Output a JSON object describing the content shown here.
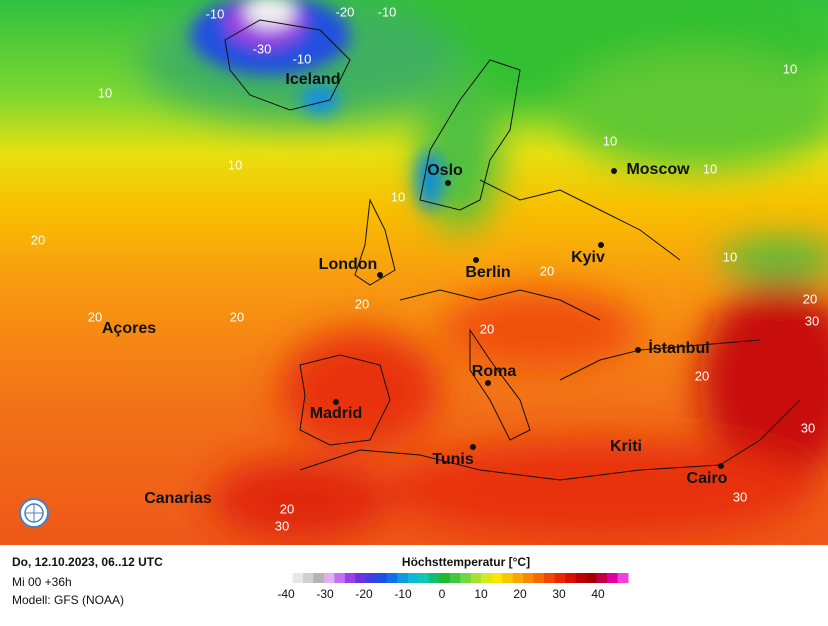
{
  "map": {
    "cities": [
      "Iceland",
      "Oslo",
      "Moscow",
      "London",
      "Berlin",
      "Kyiv",
      "Açores",
      "İstanbul",
      "Roma",
      "Madrid",
      "Tunis",
      "Kriti",
      "Cairo",
      "Canarias"
    ],
    "isoline_labels": [
      -10,
      -20,
      -10,
      -30,
      -10,
      10,
      10,
      10,
      10,
      10,
      10,
      20,
      20,
      20,
      20,
      20,
      20,
      20,
      30,
      30,
      30,
      20,
      30,
      10,
      20
    ]
  },
  "footer": {
    "date": "Do, 12.10.2023, 06..12 UTC",
    "run": "Mi 00 +36h",
    "model": "Modell: GFS (NOAA)"
  },
  "legend": {
    "title": "Höchsttemperatur [°C]",
    "ticks": [
      -40,
      -30,
      -20,
      -10,
      0,
      10,
      20,
      30,
      40
    ],
    "colors": [
      "#ffffff",
      "#e8e8e8",
      "#cfcfcf",
      "#b4b4b4",
      "#e0b0f0",
      "#c070f0",
      "#9a40e8",
      "#7030e0",
      "#4040e0",
      "#2050e8",
      "#1070e8",
      "#1098e0",
      "#10b8d8",
      "#10c8b0",
      "#10c070",
      "#20b830",
      "#40c840",
      "#70d840",
      "#a8e030",
      "#d8e820",
      "#f8e800",
      "#f8c800",
      "#f8a800",
      "#f88800",
      "#f86800",
      "#f04800",
      "#e82800",
      "#d81000",
      "#c00000",
      "#a00000",
      "#c00040",
      "#e000a0",
      "#f040e0"
    ]
  }
}
